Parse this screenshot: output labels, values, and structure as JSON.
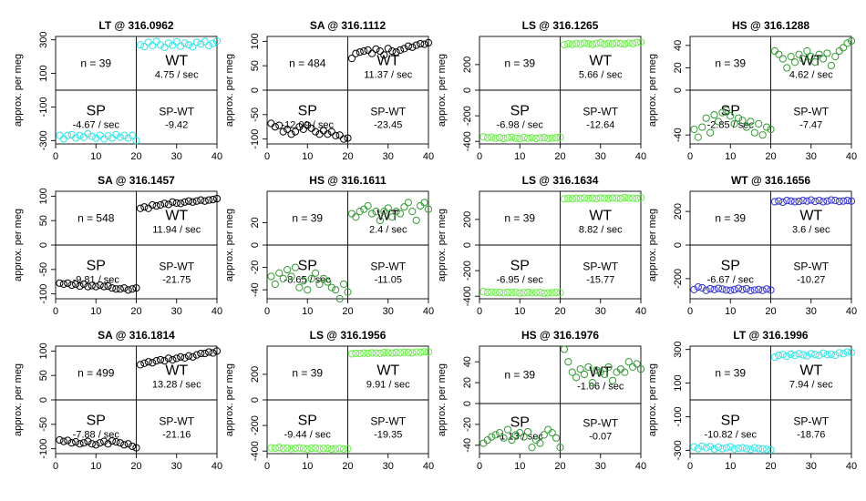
{
  "figure": {
    "ylabel": "approx. per meg"
  },
  "chart_data": [
    {
      "type": "scatter",
      "title": "LT @ 316.0962",
      "color": "#33e5e5",
      "ylabel": "approx. per meg",
      "xlim": [
        0,
        40
      ],
      "ylim": [
        -320,
        320
      ],
      "yticks": [
        -300,
        -100,
        100,
        300
      ],
      "xticks": [
        0,
        10,
        20,
        30,
        40
      ],
      "n_label": "n = 39",
      "wt_label": "WT",
      "wt_rate": "4.75 / sec",
      "sp_label": "SP",
      "sp_rate": "-4.67 / sec",
      "spwt_label": "SP-WT",
      "spwt_value": "-9.42",
      "sp_y": [
        -270,
        -290,
        -270,
        -265,
        -285,
        -270,
        -280,
        -260,
        -275,
        -285,
        -268,
        -290,
        -272,
        -285,
        -265,
        -280,
        -270,
        -285,
        -270,
        -300
      ],
      "wt_y": [
        270,
        260,
        285,
        265,
        290,
        270,
        255,
        280,
        268,
        288,
        262,
        280,
        270,
        258,
        285,
        275,
        290,
        265,
        278,
        292
      ]
    },
    {
      "type": "scatter",
      "title": "SA @ 316.1112",
      "color": "#000000",
      "ylabel": "approx. per meg",
      "xlim": [
        0,
        40
      ],
      "ylim": [
        -110,
        110
      ],
      "yticks": [
        -100,
        -50,
        0,
        50,
        100
      ],
      "xticks": [
        0,
        10,
        20,
        30,
        40
      ],
      "n_label": "n = 484",
      "wt_label": "WT",
      "wt_rate": "11.37 / sec",
      "sp_label": "SP",
      "sp_rate": "-12.09 / sec",
      "spwt_label": "SP-WT",
      "spwt_value": "-23.45",
      "sp_y": [
        -68,
        -75,
        -72,
        -85,
        -80,
        -90,
        -85,
        -75,
        -80,
        -72,
        -78,
        -85,
        -90,
        -83,
        -90,
        -85,
        -93,
        -92,
        -100,
        -98
      ],
      "wt_y": [
        65,
        75,
        78,
        80,
        82,
        75,
        84,
        80,
        72,
        85,
        80,
        78,
        82,
        85,
        90,
        88,
        92,
        95,
        94,
        97
      ]
    },
    {
      "type": "scatter",
      "title": "LS @ 316.1265",
      "color": "#66ee44",
      "ylabel": "approx. per meg",
      "xlim": [
        0,
        40
      ],
      "ylim": [
        -420,
        420
      ],
      "yticks": [
        -400,
        -200,
        0,
        200
      ],
      "xticks": [
        0,
        10,
        20,
        30,
        40
      ],
      "n_label": "n = 39",
      "wt_label": "WT",
      "wt_rate": "5.66 / sec",
      "sp_label": "SP",
      "sp_rate": "-6.98 / sec",
      "spwt_label": "SP-WT",
      "spwt_value": "-12.64",
      "sp_y": [
        -365,
        -372,
        -368,
        -375,
        -370,
        -378,
        -372,
        -368,
        -375,
        -380,
        -370,
        -376,
        -372,
        -378,
        -374,
        -370,
        -378,
        -374,
        -372,
        -368
      ],
      "wt_y": [
        355,
        362,
        358,
        365,
        360,
        368,
        362,
        358,
        365,
        370,
        360,
        366,
        362,
        368,
        364,
        360,
        368,
        364,
        372,
        375
      ]
    },
    {
      "type": "scatter",
      "title": "HS @ 316.1288",
      "color": "#339933",
      "ylabel": "approx. per meg",
      "xlim": [
        0,
        40
      ],
      "ylim": [
        -48,
        48
      ],
      "yticks": [
        -40,
        0,
        20,
        40
      ],
      "xticks": [
        0,
        10,
        20,
        30,
        40
      ],
      "n_label": "n = 39",
      "wt_label": "WT",
      "wt_rate": "4.62 / sec",
      "sp_label": "SP",
      "sp_rate": "-2.85 / sec",
      "spwt_label": "SP-WT",
      "spwt_value": "-7.47",
      "sp_y": [
        -35,
        -42,
        -33,
        -25,
        -38,
        -22,
        -28,
        -20,
        -18,
        -23,
        -30,
        -25,
        -27,
        -33,
        -28,
        -38,
        -30,
        -40,
        -33,
        -35
      ],
      "wt_y": [
        35,
        32,
        28,
        20,
        30,
        25,
        32,
        28,
        35,
        30,
        25,
        32,
        28,
        33,
        22,
        30,
        35,
        38,
        42,
        44
      ]
    },
    {
      "type": "scatter",
      "title": "SA @ 316.1457",
      "color": "#000000",
      "ylabel": "approx. per meg",
      "xlim": [
        0,
        40
      ],
      "ylim": [
        -110,
        110
      ],
      "yticks": [
        -100,
        -50,
        0,
        50,
        100
      ],
      "xticks": [
        0,
        10,
        20,
        30,
        40
      ],
      "n_label": "n = 548",
      "wt_label": "WT",
      "wt_rate": "11.94 / sec",
      "sp_label": "SP",
      "sp_rate": "-9.81 / sec",
      "spwt_label": "SP-WT",
      "spwt_value": "-21.75",
      "sp_y": [
        -78,
        -80,
        -78,
        -82,
        -80,
        -84,
        -80,
        -85,
        -83,
        -85,
        -82,
        -85,
        -84,
        -88,
        -90,
        -90,
        -88,
        -92,
        -90,
        -88
      ],
      "wt_y": [
        75,
        78,
        75,
        82,
        80,
        82,
        85,
        83,
        88,
        86,
        85,
        88,
        90,
        88,
        90,
        92,
        90,
        92,
        93,
        95
      ]
    },
    {
      "type": "scatter",
      "title": "HS @ 316.1611",
      "color": "#339933",
      "ylabel": "approx. per meg",
      "xlim": [
        0,
        40
      ],
      "ylim": [
        -48,
        48
      ],
      "yticks": [
        -40,
        -20,
        0,
        20
      ],
      "xticks": [
        0,
        10,
        20,
        30,
        40
      ],
      "n_label": "n = 39",
      "wt_label": "WT",
      "wt_rate": "2.4 / sec",
      "sp_label": "SP",
      "sp_rate": "-8.65 / sec",
      "spwt_label": "SP-WT",
      "spwt_value": "-11.05",
      "sp_y": [
        -28,
        -35,
        -25,
        -30,
        -22,
        -28,
        -20,
        -38,
        -32,
        -40,
        -30,
        -25,
        -35,
        -30,
        -33,
        -38,
        -40,
        -48,
        -35,
        -42
      ],
      "wt_y": [
        28,
        25,
        30,
        32,
        35,
        28,
        30,
        22,
        30,
        33,
        25,
        30,
        28,
        34,
        38,
        30,
        22,
        35,
        38,
        32
      ]
    },
    {
      "type": "scatter",
      "title": "LS @ 316.1634",
      "color": "#66ee44",
      "ylabel": "approx. per meg",
      "xlim": [
        0,
        40
      ],
      "ylim": [
        -420,
        420
      ],
      "yticks": [
        -400,
        -200,
        0,
        200
      ],
      "xticks": [
        0,
        10,
        20,
        30,
        40
      ],
      "n_label": "n = 39",
      "wt_label": "WT",
      "wt_rate": "8.82 / sec",
      "sp_label": "SP",
      "sp_rate": "-6.95 / sec",
      "spwt_label": "SP-WT",
      "spwt_value": "-15.77",
      "sp_y": [
        -365,
        -370,
        -368,
        -372,
        -370,
        -374,
        -370,
        -372,
        -368,
        -375,
        -372,
        -370,
        -374,
        -372,
        -370,
        -376,
        -374,
        -372,
        -370,
        -372
      ],
      "wt_y": [
        360,
        364,
        362,
        366,
        364,
        368,
        364,
        366,
        362,
        368,
        366,
        364,
        368,
        366,
        364,
        370,
        368,
        366,
        364,
        370
      ]
    },
    {
      "type": "scatter",
      "title": "WT @ 316.1656",
      "color": "#3333cc",
      "ylabel": "approx. per meg",
      "xlim": [
        0,
        40
      ],
      "ylim": [
        -320,
        320
      ],
      "yticks": [
        -200,
        0,
        200
      ],
      "xticks": [
        0,
        10,
        20,
        30,
        40
      ],
      "n_label": "n = 39",
      "wt_label": "WT",
      "wt_rate": "3.6 / sec",
      "sp_label": "SP",
      "sp_rate": "-6.67 / sec",
      "spwt_label": "SP-WT",
      "spwt_value": "-10.27",
      "sp_y": [
        -265,
        -250,
        -255,
        -270,
        -260,
        -265,
        -258,
        -262,
        -268,
        -270,
        -265,
        -258,
        -265,
        -260,
        -272,
        -268,
        -265,
        -270,
        -262,
        -268
      ],
      "wt_y": [
        258,
        262,
        255,
        265,
        262,
        258,
        260,
        265,
        262,
        268,
        260,
        265,
        258,
        262,
        268,
        265,
        260,
        262,
        265,
        262
      ]
    },
    {
      "type": "scatter",
      "title": "SA @ 316.1814",
      "color": "#000000",
      "ylabel": "approx. per meg",
      "xlim": [
        0,
        40
      ],
      "ylim": [
        -110,
        110
      ],
      "yticks": [
        -100,
        -50,
        0,
        50,
        100
      ],
      "xticks": [
        0,
        10,
        20,
        30,
        40
      ],
      "n_label": "n = 499",
      "wt_label": "WT",
      "wt_rate": "13.28 / sec",
      "sp_label": "SP",
      "sp_rate": "-7.88 / sec",
      "spwt_label": "SP-WT",
      "spwt_value": "-21.16",
      "sp_y": [
        -82,
        -85,
        -83,
        -88,
        -86,
        -90,
        -88,
        -85,
        -90,
        -92,
        -88,
        -85,
        -90,
        -84,
        -86,
        -88,
        -92,
        -90,
        -95,
        -98
      ],
      "wt_y": [
        72,
        75,
        78,
        76,
        80,
        82,
        80,
        85,
        82,
        85,
        88,
        86,
        90,
        88,
        92,
        95,
        95,
        98,
        96,
        100
      ]
    },
    {
      "type": "scatter",
      "title": "LS @ 316.1956",
      "color": "#66ee44",
      "ylabel": "approx. per meg",
      "xlim": [
        0,
        40
      ],
      "ylim": [
        -420,
        420
      ],
      "yticks": [
        -400,
        -200,
        0,
        200
      ],
      "xticks": [
        0,
        10,
        20,
        30,
        40
      ],
      "n_label": "n = 39",
      "wt_label": "WT",
      "wt_rate": "9.91 / sec",
      "sp_label": "SP",
      "sp_rate": "-9.44 / sec",
      "spwt_label": "SP-WT",
      "spwt_value": "-19.35",
      "sp_y": [
        -375,
        -378,
        -372,
        -380,
        -376,
        -382,
        -378,
        -375,
        -380,
        -384,
        -378,
        -376,
        -382,
        -380,
        -378,
        -385,
        -382,
        -380,
        -384,
        -382
      ],
      "wt_y": [
        360,
        364,
        362,
        366,
        364,
        368,
        366,
        364,
        370,
        368,
        366,
        370,
        368,
        372,
        370,
        368,
        374,
        372,
        376,
        375
      ]
    },
    {
      "type": "scatter",
      "title": "HS @ 316.1976",
      "color": "#339933",
      "ylabel": "approx. per meg",
      "xlim": [
        0,
        40
      ],
      "ylim": [
        -48,
        55
      ],
      "yticks": [
        -40,
        -20,
        0,
        20,
        40
      ],
      "xticks": [
        0,
        10,
        20,
        30,
        40
      ],
      "n_label": "n = 39",
      "wt_label": "WT",
      "wt_rate": "-1.06 / sec",
      "sp_label": "SP",
      "sp_rate": "-1.13 / sec",
      "spwt_label": "SP-WT",
      "spwt_value": "-0.07",
      "sp_y": [
        -38,
        -35,
        -32,
        -30,
        -28,
        -33,
        -25,
        -35,
        -30,
        -28,
        -32,
        -27,
        -42,
        -35,
        -38,
        -30,
        -25,
        -28,
        -33,
        -42
      ],
      "wt_y": [
        52,
        40,
        30,
        25,
        33,
        28,
        35,
        20,
        32,
        30,
        28,
        35,
        22,
        30,
        33,
        30,
        40,
        35,
        38,
        33
      ]
    },
    {
      "type": "scatter",
      "title": "LT @ 316.1996",
      "color": "#33e5e5",
      "ylabel": "approx. per meg",
      "xlim": [
        0,
        40
      ],
      "ylim": [
        -320,
        320
      ],
      "yticks": [
        -300,
        -100,
        100,
        300
      ],
      "xticks": [
        0,
        10,
        20,
        30,
        40
      ],
      "n_label": "n = 39",
      "wt_label": "WT",
      "wt_rate": "7.94 / sec",
      "sp_label": "SP",
      "sp_rate": "-10.82 / sec",
      "spwt_label": "SP-WT",
      "spwt_value": "-18.76",
      "sp_y": [
        -280,
        -290,
        -275,
        -285,
        -278,
        -292,
        -282,
        -290,
        -285,
        -280,
        -292,
        -288,
        -285,
        -290,
        -295,
        -285,
        -290,
        -292,
        -295,
        -298
      ],
      "wt_y": [
        255,
        265,
        270,
        260,
        272,
        265,
        275,
        268,
        262,
        275,
        270,
        265,
        278,
        270,
        272,
        265,
        280,
        275,
        285,
        282
      ]
    }
  ]
}
